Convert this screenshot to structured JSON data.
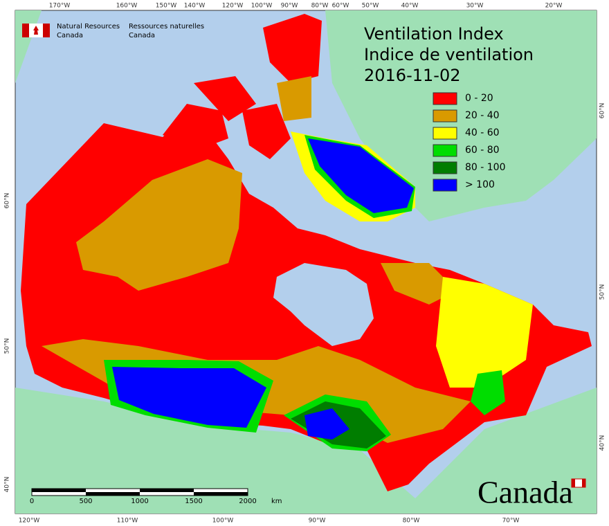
{
  "header": {
    "org_en_1": "Natural Resources",
    "org_en_2": "Canada",
    "org_fr_1": "Ressources naturelles",
    "org_fr_2": "Canada"
  },
  "title": {
    "line1": "Ventilation Index",
    "line2": "Indice de ventilation",
    "date": "2016-11-02"
  },
  "legend": [
    {
      "label": "0 - 20",
      "color": "#ff0000"
    },
    {
      "label": "20 - 40",
      "color": "#d99a00"
    },
    {
      "label": "40 - 60",
      "color": "#ffff00"
    },
    {
      "label": "60 - 80",
      "color": "#00dd00"
    },
    {
      "label": "80 - 100",
      "color": "#007d00"
    },
    {
      "label": "> 100",
      "color": "#0000ff"
    }
  ],
  "graticule": {
    "top": [
      "170°W",
      "160°W",
      "150°W",
      "140°W",
      "120°W",
      "100°W",
      "90°W",
      "80°W",
      "60°W",
      "50°W",
      "40°W",
      "30°W",
      "20°W"
    ],
    "bottom": [
      "120°W",
      "110°W",
      "100°W",
      "90°W",
      "80°W",
      "70°W"
    ],
    "left": [
      "60°N",
      "50°N",
      "40°N"
    ],
    "right": [
      "60°N",
      "50°N",
      "40°N"
    ]
  },
  "scale": {
    "ticks": [
      "0",
      "500",
      "1000",
      "1500",
      "2000"
    ],
    "unit": "km"
  },
  "wordmark": "Canada"
}
